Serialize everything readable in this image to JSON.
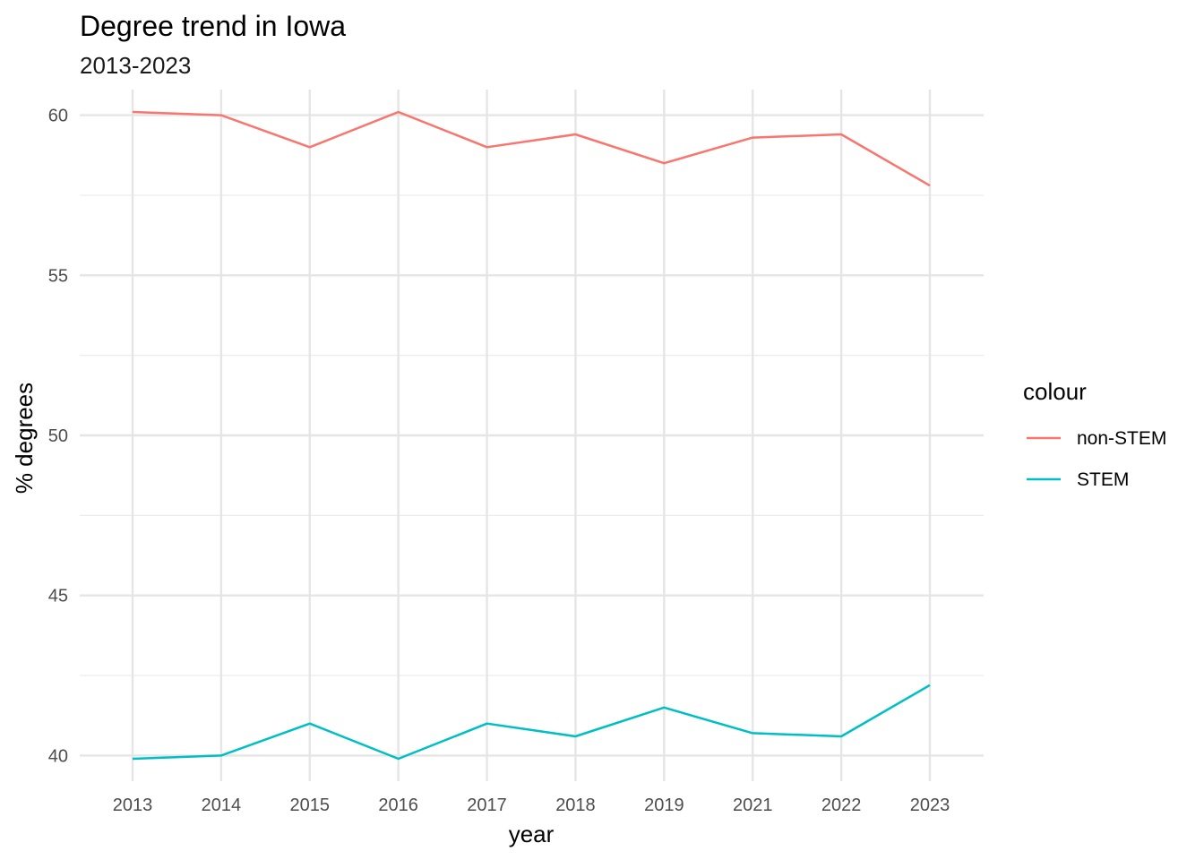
{
  "chart_data": {
    "type": "line",
    "title": "Degree trend in Iowa",
    "subtitle": "2013-2023",
    "xlabel": "year",
    "ylabel": "% degrees",
    "categories": [
      "2013",
      "2014",
      "2015",
      "2016",
      "2017",
      "2018",
      "2019",
      "2021",
      "2022",
      "2023"
    ],
    "ylim": [
      39.2,
      60.8
    ],
    "yticks": [
      40,
      45,
      50,
      55,
      60
    ],
    "y_minor_ticks": [
      42.5,
      47.5,
      52.5,
      57.5
    ],
    "grid": true,
    "legend": {
      "title": "colour",
      "placement": "right"
    },
    "series": [
      {
        "name": "non-STEM",
        "color": "#F8766D",
        "values": [
          60.1,
          60.0,
          59.0,
          60.1,
          59.0,
          59.4,
          58.5,
          59.3,
          59.4,
          57.8
        ]
      },
      {
        "name": "STEM",
        "color": "#00BFC4",
        "values": [
          39.9,
          40.0,
          41.0,
          39.9,
          41.0,
          40.6,
          41.5,
          40.7,
          40.6,
          42.2
        ]
      }
    ]
  }
}
